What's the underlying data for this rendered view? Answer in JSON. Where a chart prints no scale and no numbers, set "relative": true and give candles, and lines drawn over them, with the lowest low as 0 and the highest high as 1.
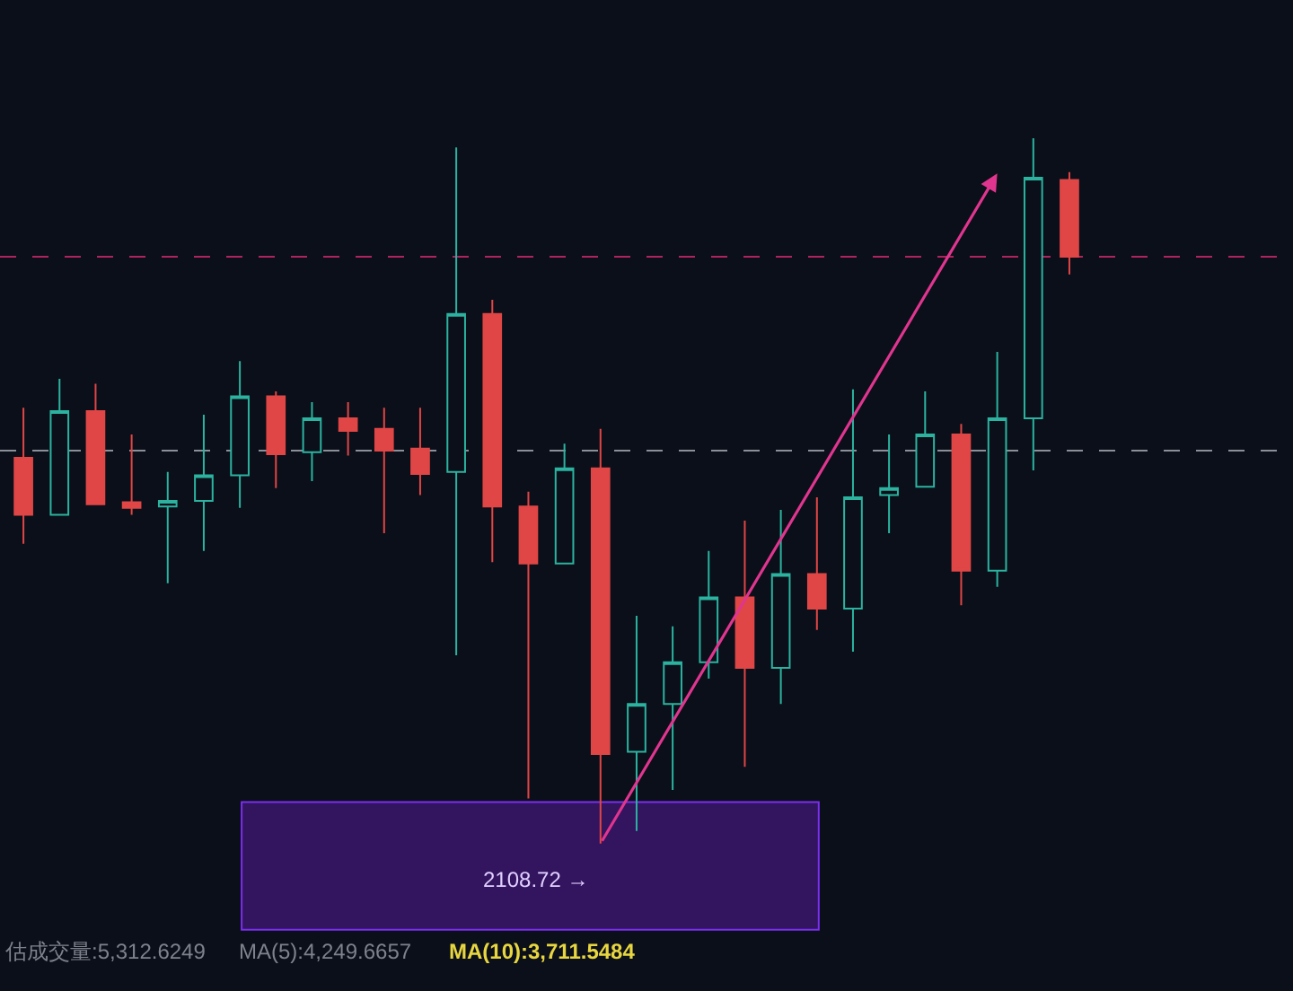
{
  "chart_data": {
    "type": "candlestick",
    "relative": true,
    "grid": false,
    "legend": false,
    "categories": [
      null,
      null,
      null,
      null,
      null,
      null,
      null,
      null,
      null,
      null,
      null,
      null,
      null,
      null,
      null,
      null,
      null,
      null,
      null,
      null,
      null,
      null,
      null,
      null,
      null,
      null,
      null,
      null,
      null,
      null
    ],
    "ohlc": [
      [
        0.547,
        0.618,
        0.425,
        0.466
      ],
      [
        0.466,
        0.659,
        0.466,
        0.613
      ],
      [
        0.613,
        0.652,
        0.481,
        0.481
      ],
      [
        0.484,
        0.58,
        0.466,
        0.476
      ],
      [
        0.478,
        0.527,
        0.369,
        0.486
      ],
      [
        0.486,
        0.608,
        0.415,
        0.522
      ],
      [
        0.522,
        0.684,
        0.476,
        0.634
      ],
      [
        0.634,
        0.641,
        0.504,
        0.552
      ],
      [
        0.555,
        0.626,
        0.514,
        0.603
      ],
      [
        0.603,
        0.626,
        0.55,
        0.585
      ],
      [
        0.588,
        0.618,
        0.44,
        0.557
      ],
      [
        0.56,
        0.618,
        0.494,
        0.524
      ],
      [
        0.527,
        0.987,
        0.267,
        0.751
      ],
      [
        0.751,
        0.771,
        0.399,
        0.478
      ],
      [
        0.478,
        0.499,
        0.064,
        0.397
      ],
      [
        0.397,
        0.567,
        0.397,
        0.532
      ],
      [
        0.532,
        0.588,
        0,
        0.127
      ],
      [
        0.13,
        0.323,
        0.018,
        0.198
      ],
      [
        0.198,
        0.308,
        0.076,
        0.257
      ],
      [
        0.257,
        0.415,
        0.234,
        0.349
      ],
      [
        0.349,
        0.458,
        0.109,
        0.249
      ],
      [
        0.249,
        0.473,
        0.198,
        0.382
      ],
      [
        0.382,
        0.491,
        0.303,
        0.333
      ],
      [
        0.333,
        0.644,
        0.272,
        0.491
      ],
      [
        0.494,
        0.58,
        0.44,
        0.504
      ],
      [
        0.506,
        0.641,
        0.506,
        0.58
      ],
      [
        0.58,
        0.595,
        0.338,
        0.387
      ],
      [
        0.387,
        0.697,
        0.364,
        0.603
      ],
      [
        0.603,
        1,
        0.529,
        0.944
      ],
      [
        0.941,
        0.952,
        0.807,
        0.832
      ]
    ],
    "ref_lines": [
      {
        "axis": "y",
        "value": 0.832,
        "color": "#b0245e",
        "line_style": "dashed"
      },
      {
        "axis": "y",
        "value": 0.557,
        "color": "#8a8f98",
        "line_style": "dashed"
      }
    ],
    "bands": [
      {
        "axis": "y",
        "from": -0.122,
        "to": 0.059,
        "color": "#33145f"
      }
    ],
    "annotations": [
      "2108.72 →",
      "估成交量:5,312.6249",
      "MA(5):4,249.6657",
      "MA(10):3,711.5484"
    ]
  }
}
